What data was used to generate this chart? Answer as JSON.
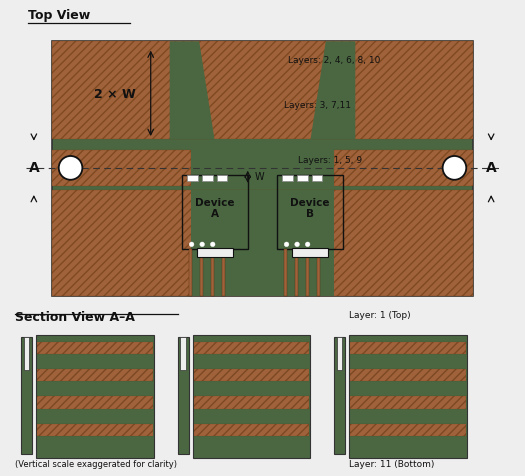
{
  "title_top": "Top View",
  "title_section": "Section View A–A",
  "bg_color": "#eeeeee",
  "green": "#4a6741",
  "copper": "#a0623a",
  "white": "#ffffff",
  "dark": "#111111",
  "label_2x_w": "2 × W",
  "label_layers_top": "Layers: 2, 4, 6, 8, 10",
  "label_layers_mid": "Layers: 3, 7,11",
  "label_layers_bot": "Layers: 1, 5, 9",
  "label_device_a": "Device\nA",
  "label_device_b": "Device\nB",
  "label_w": "W",
  "label_A": "A",
  "label_section_note": "(Vertical scale exaggerated for clarity)",
  "label_layer1": "Layer: 1 (Top)",
  "label_layer11": "Layer: 11 (Bottom)"
}
